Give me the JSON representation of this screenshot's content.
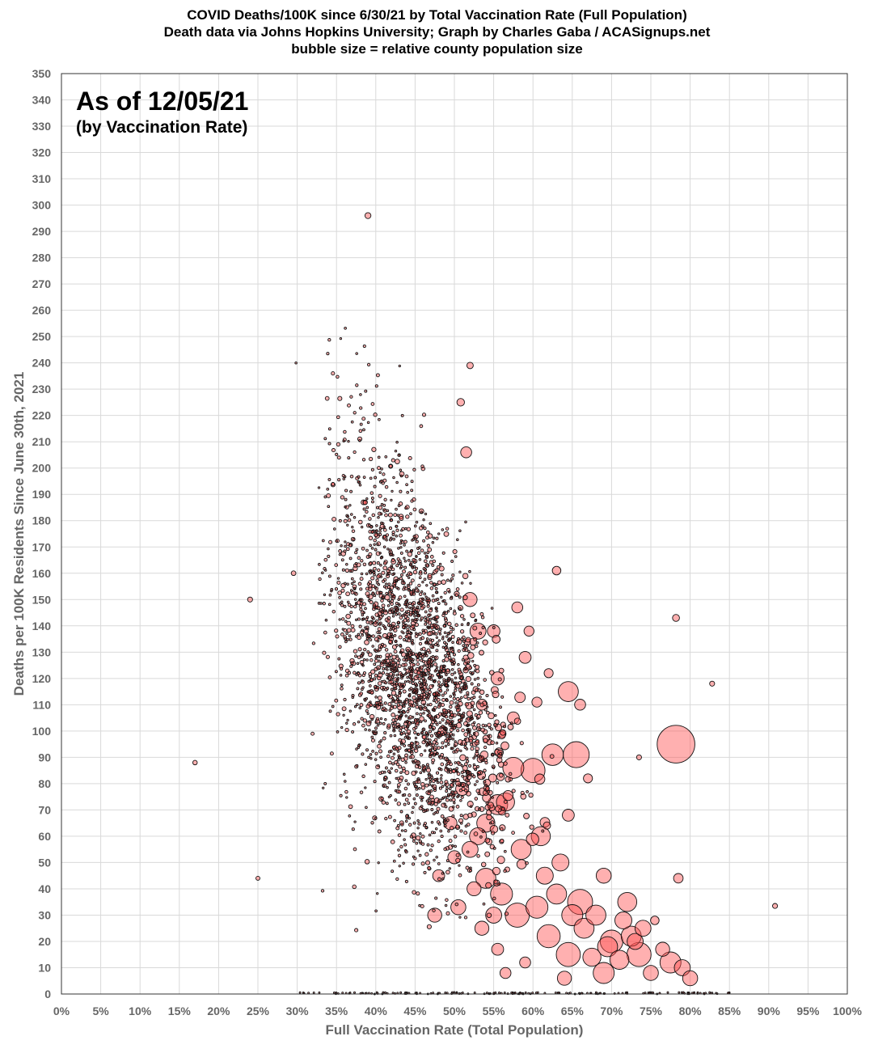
{
  "chart_data": {
    "type": "scatter",
    "title": "COVID Deaths/100K since 6/30/21 by Total Vaccination Rate (Full Population)",
    "subtitle": "Death data via Johns Hopkins University; Graph by Charles Gaba / ACASignups.net",
    "subtitle2": "bubble size = relative county population size",
    "xlabel": "Full Vaccination Rate (Total Population)",
    "ylabel": "Deaths per 100K Residents Since June 30th, 2021",
    "annotation_main": "As of 12/05/21",
    "annotation_sub": "(by Vaccination Rate)",
    "xlim": [
      0,
      100
    ],
    "ylim": [
      0,
      350
    ],
    "x_ticks": [
      "0%",
      "5%",
      "10%",
      "15%",
      "20%",
      "25%",
      "30%",
      "35%",
      "40%",
      "45%",
      "50%",
      "55%",
      "60%",
      "65%",
      "70%",
      "75%",
      "80%",
      "85%",
      "90%",
      "95%",
      "100%"
    ],
    "y_ticks": [
      "0",
      "10",
      "20",
      "30",
      "40",
      "50",
      "60",
      "70",
      "80",
      "90",
      "100",
      "110",
      "120",
      "130",
      "140",
      "150",
      "160",
      "170",
      "180",
      "190",
      "200",
      "210",
      "220",
      "230",
      "240",
      "250",
      "260",
      "270",
      "280",
      "290",
      "300",
      "310",
      "320",
      "330",
      "340",
      "350"
    ],
    "grid": true,
    "bubble_color": "#ff5050",
    "points": [
      [
        78.2,
        95,
        7.5
      ],
      [
        65.5,
        91,
        5.2
      ],
      [
        64.5,
        115,
        4.0
      ],
      [
        62.5,
        91,
        4.3
      ],
      [
        60.0,
        85,
        4.8
      ],
      [
        57.5,
        86,
        4.2
      ],
      [
        55.5,
        72,
        4.0
      ],
      [
        54.0,
        65,
        3.6
      ],
      [
        53.0,
        60,
        3.4
      ],
      [
        52.0,
        55,
        3.2
      ],
      [
        52.0,
        150,
        2.8
      ],
      [
        51.5,
        206,
        2.2
      ],
      [
        53.0,
        138,
        3.2
      ],
      [
        55.5,
        120,
        2.6
      ],
      [
        58.0,
        147,
        2.2
      ],
      [
        59.0,
        128,
        2.4
      ],
      [
        60.5,
        111,
        2.0
      ],
      [
        57.5,
        105,
        2.4
      ],
      [
        62.0,
        122,
        1.8
      ],
      [
        63.0,
        161,
        1.7
      ],
      [
        66.0,
        110,
        2.2
      ],
      [
        67.0,
        82,
        1.8
      ],
      [
        64.5,
        68,
        2.4
      ],
      [
        66.0,
        35,
        5.0
      ],
      [
        68.0,
        30,
        4.0
      ],
      [
        72.0,
        35,
        3.8
      ],
      [
        70.0,
        20,
        4.5
      ],
      [
        73.5,
        15,
        4.8
      ],
      [
        77.5,
        12,
        4.2
      ],
      [
        79.0,
        10,
        3.2
      ],
      [
        80.0,
        6,
        3.0
      ],
      [
        75.0,
        8,
        3.0
      ],
      [
        62.0,
        22,
        4.6
      ],
      [
        64.5,
        15,
        4.8
      ],
      [
        69.0,
        8,
        4.2
      ],
      [
        60.5,
        33,
        4.4
      ],
      [
        58.0,
        30,
        4.8
      ],
      [
        56.0,
        38,
        4.4
      ],
      [
        54.0,
        44,
        4.0
      ],
      [
        50.5,
        33,
        3.0
      ],
      [
        47.5,
        30,
        2.8
      ],
      [
        58.5,
        55,
        4.0
      ],
      [
        61.0,
        60,
        3.8
      ],
      [
        56.5,
        73,
        3.6
      ],
      [
        63.5,
        50,
        3.4
      ],
      [
        69.0,
        45,
        3.0
      ],
      [
        71.5,
        28,
        3.4
      ],
      [
        74.0,
        25,
        3.2
      ],
      [
        66.5,
        25,
        4.0
      ],
      [
        67.5,
        14,
        3.6
      ],
      [
        71.0,
        13,
        3.8
      ],
      [
        73.0,
        20,
        3.2
      ],
      [
        76.5,
        17,
        2.8
      ],
      [
        78.5,
        44,
        1.9
      ],
      [
        78.2,
        143,
        1.4
      ],
      [
        72.5,
        22,
        4.0
      ],
      [
        69.5,
        18,
        4.0
      ],
      [
        65.0,
        30,
        4.2
      ],
      [
        63.0,
        38,
        4.0
      ],
      [
        61.5,
        45,
        3.4
      ],
      [
        55.0,
        30,
        3.2
      ],
      [
        53.5,
        25,
        2.8
      ],
      [
        52.5,
        40,
        2.8
      ],
      [
        50.0,
        52,
        2.6
      ],
      [
        49.5,
        65,
        2.6
      ],
      [
        51.0,
        78,
        2.6
      ],
      [
        48.0,
        45,
        2.4
      ],
      [
        39.0,
        296,
        1.2
      ],
      [
        52.0,
        239,
        1.3
      ],
      [
        50.8,
        225,
        1.5
      ],
      [
        55.0,
        138,
        2.5
      ],
      [
        59.5,
        138,
        2.0
      ],
      [
        64.0,
        6,
        2.8
      ],
      [
        75.5,
        28,
        1.7
      ],
      [
        90.8,
        33.5,
        1.0
      ],
      [
        82.8,
        118,
        1.0
      ],
      [
        73.5,
        90,
        1.0
      ],
      [
        24.0,
        150,
        1.0
      ],
      [
        17.0,
        88,
        0.9
      ],
      [
        25.0,
        44,
        0.8
      ],
      [
        56.5,
        8,
        2.2
      ],
      [
        55.5,
        17,
        2.4
      ],
      [
        48.5,
        100,
        1.8
      ],
      [
        53.5,
        110,
        2.2
      ],
      [
        59.0,
        12,
        2.2
      ]
    ]
  }
}
